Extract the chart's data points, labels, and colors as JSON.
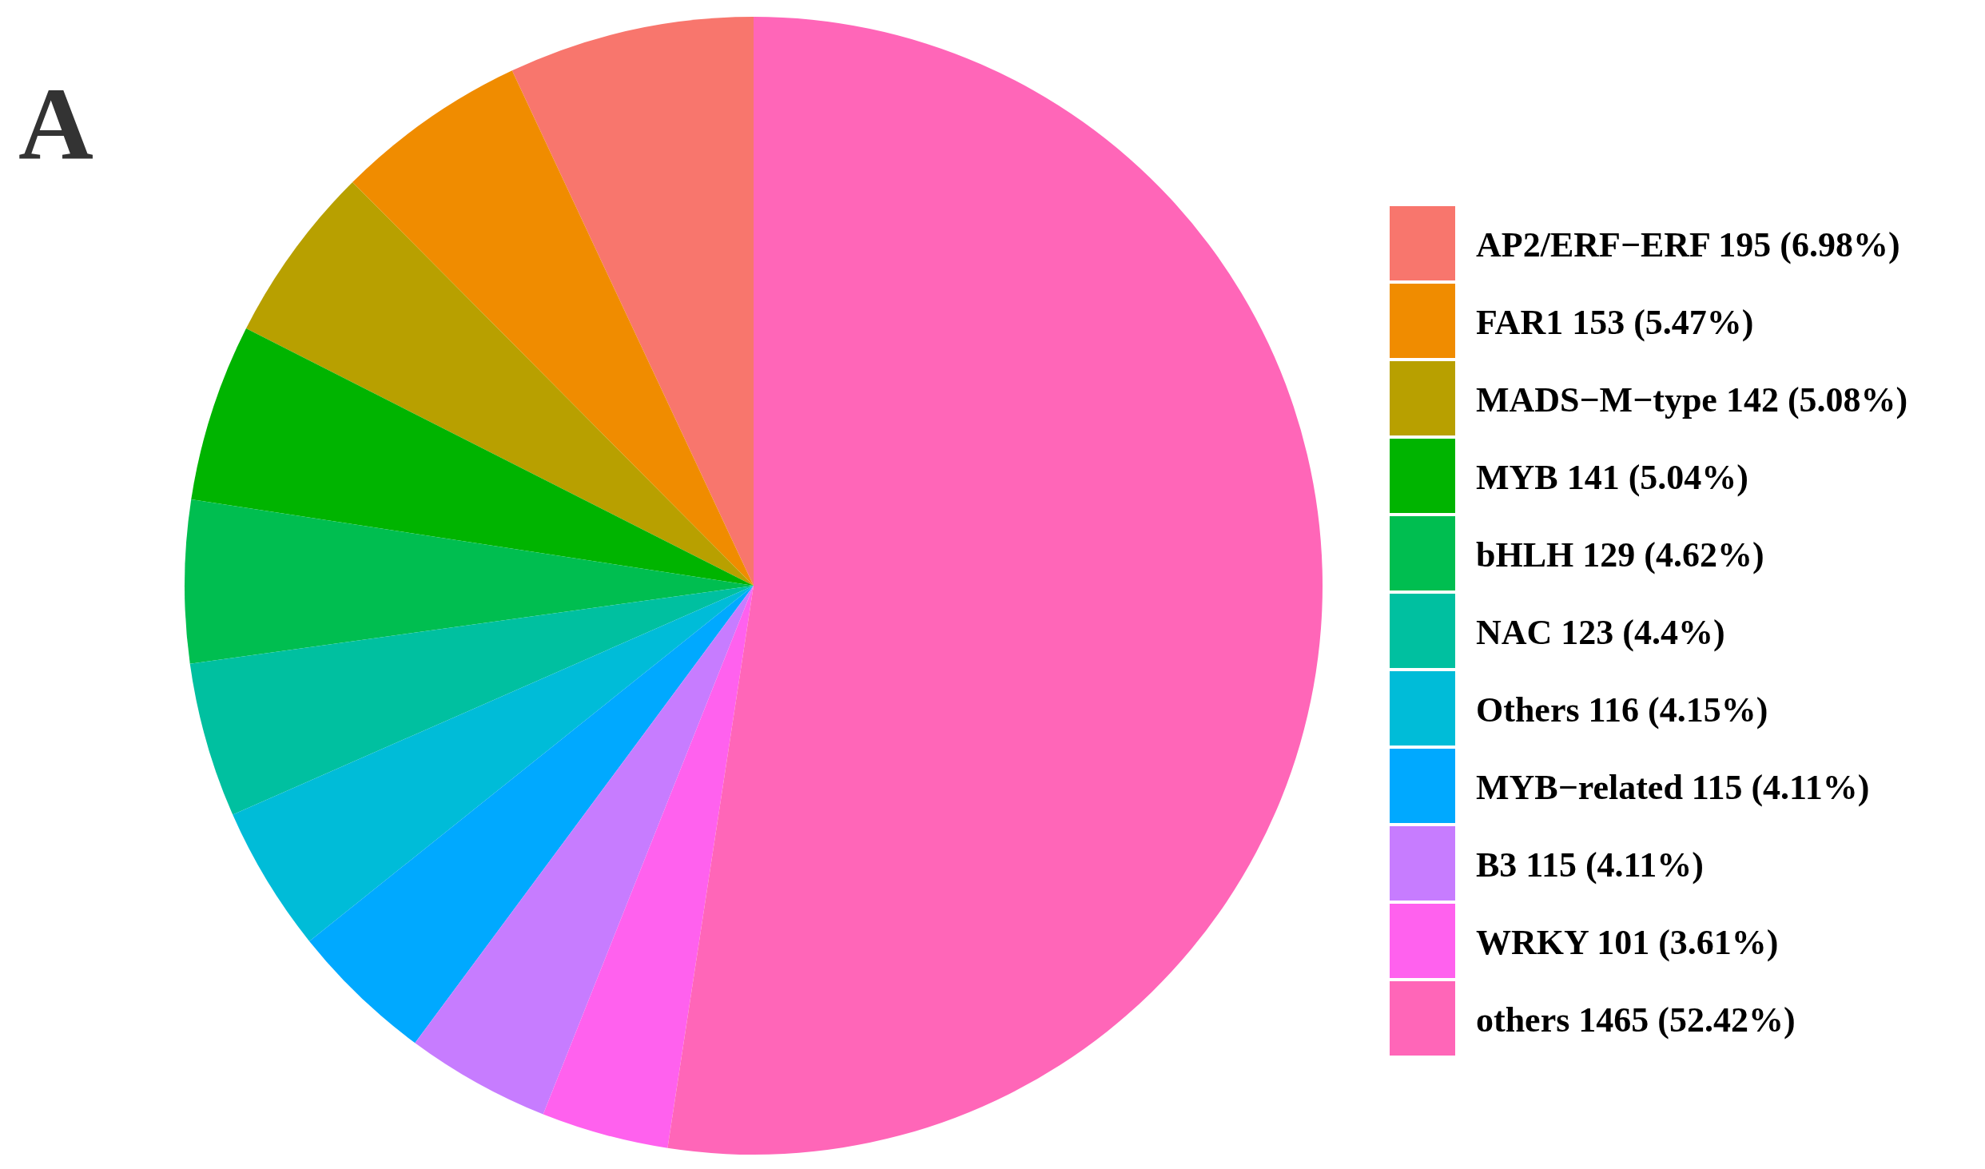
{
  "chart_data": {
    "type": "pie",
    "annotations": [
      "A"
    ],
    "legend": "right",
    "categories": [
      "AP2/ERF−ERF 195 (6.98%)",
      "FAR1 153 (5.47%)",
      "MADS−M−type 142 (5.08%)",
      "MYB 141 (5.04%)",
      "bHLH 129 (4.62%)",
      "NAC 123 (4.4%)",
      "Others 116 (4.15%)",
      "MYB−related 115 (4.11%)",
      "B3 115 (4.11%)",
      "WRKY 101 (3.61%)",
      "others 1465 (52.42%)"
    ],
    "values": [
      195,
      153,
      142,
      141,
      129,
      123,
      116,
      115,
      115,
      101,
      1465
    ],
    "colors": [
      "#f8766d",
      "#f08c00",
      "#b8a000",
      "#00b400",
      "#00be50",
      "#00c0a0",
      "#00bcd8",
      "#00a9ff",
      "#c77cff",
      "#ff61ee",
      "#ff66b8"
    ]
  }
}
